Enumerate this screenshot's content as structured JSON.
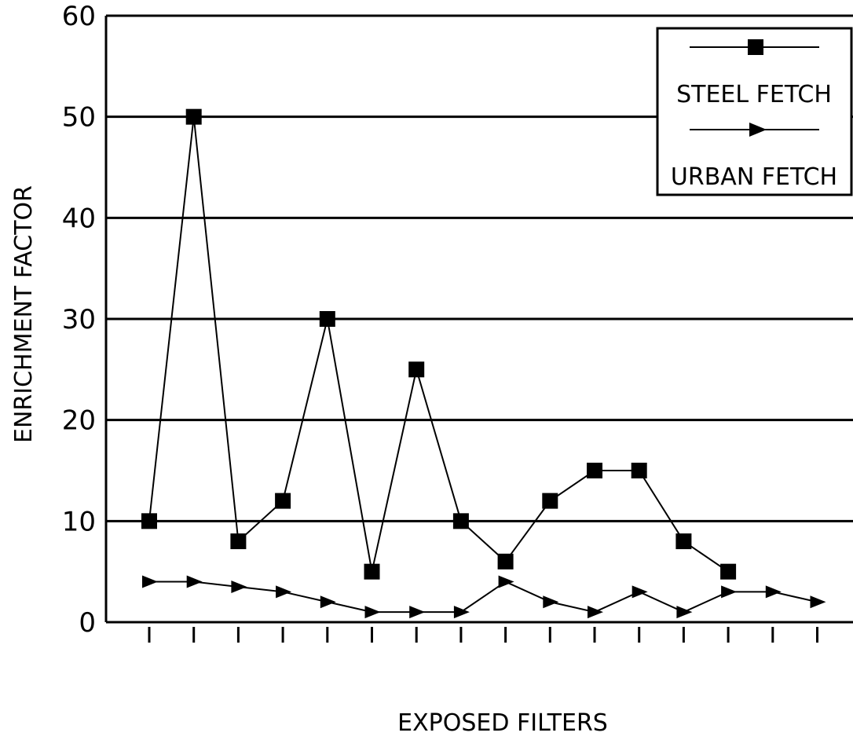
{
  "chart_data": {
    "type": "line",
    "title": "",
    "xlabel": "EXPOSED FILTERS",
    "ylabel": "ENRICHMENT FACTOR",
    "ylim": [
      0,
      60
    ],
    "yticks": [
      "0",
      "10",
      "20",
      "30",
      "40",
      "50",
      "60"
    ],
    "x_count": 16,
    "grid": "horizontal",
    "legend_position": "top-right",
    "series": [
      {
        "name": "STEEL FETCH",
        "marker": "square",
        "values": [
          10,
          50,
          8,
          12,
          30,
          5,
          25,
          10,
          6,
          12,
          15,
          15,
          8,
          5
        ]
      },
      {
        "name": "URBAN FETCH",
        "marker": "triangle-right",
        "values": [
          4,
          4,
          3.5,
          3,
          2,
          1,
          1,
          1,
          4,
          2,
          1,
          3,
          1,
          3,
          3,
          2
        ]
      }
    ]
  }
}
